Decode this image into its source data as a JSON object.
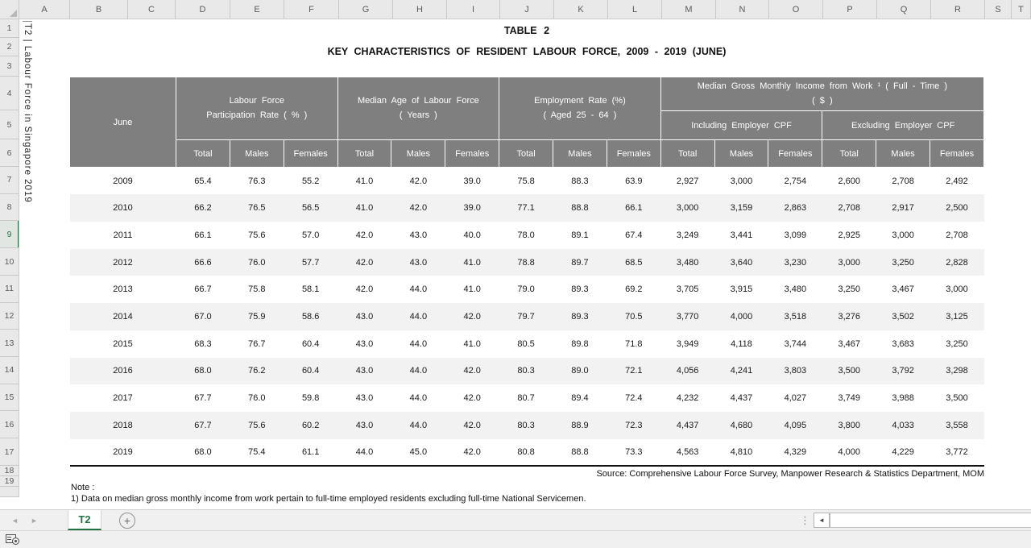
{
  "chrome": {
    "column_letters": [
      "A",
      "B",
      "C",
      "D",
      "E",
      "F",
      "G",
      "H",
      "I",
      "J",
      "K",
      "L",
      "M",
      "N",
      "O",
      "P",
      "Q",
      "R",
      "S",
      "T"
    ],
    "row_numbers": [
      "1",
      "2",
      "3",
      "4",
      "5",
      "6",
      "7",
      "8",
      "9",
      "10",
      "11",
      "12",
      "13",
      "14",
      "15",
      "16",
      "17",
      "18",
      "19"
    ],
    "selected_row": "9",
    "vertical_text": "T2 | Labour Force in Singapore 2019",
    "sheet_tab": "T2",
    "icons": {
      "nav_left": "◄",
      "nav_right": "►",
      "add_sheet": "+",
      "tab_scroll_dots": "⋮",
      "hscroll_left": "◄"
    },
    "colors": {
      "accent_green": "#217346",
      "table_header_gray": "#7f7f7f",
      "alt_row_gray": "#f2f2f2"
    }
  },
  "table": {
    "title": "TABLE 2",
    "subtitle": "KEY CHARACTERISTICS OF RESIDENT LABOUR FORCE, 2009 - 2019 (JUNE)",
    "row_header": "June",
    "groups": [
      {
        "label": "Labour Force\nParticipation Rate ( % )"
      },
      {
        "label": "Median Age of Labour Force\n( Years )"
      },
      {
        "label": "Employment Rate (%)\n( Aged 25 - 64 )"
      },
      {
        "label": "Median Gross Monthly Income from Work ¹ ( Full - Time )\n( $ )",
        "sub": [
          "Including Employer CPF",
          "Excluding Employer CPF"
        ]
      }
    ],
    "sub_headers": [
      "Total",
      "Males",
      "Females",
      "Total",
      "Males",
      "Females",
      "Total",
      "Males",
      "Females",
      "Total",
      "Males",
      "Females",
      "Total",
      "Males",
      "Females"
    ],
    "rows": [
      {
        "year": "2009",
        "values": [
          "65.4",
          "76.3",
          "55.2",
          "41.0",
          "42.0",
          "39.0",
          "75.8",
          "88.3",
          "63.9",
          "2,927",
          "3,000",
          "2,754",
          "2,600",
          "2,708",
          "2,492"
        ]
      },
      {
        "year": "2010",
        "values": [
          "66.2",
          "76.5",
          "56.5",
          "41.0",
          "42.0",
          "39.0",
          "77.1",
          "88.8",
          "66.1",
          "3,000",
          "3,159",
          "2,863",
          "2,708",
          "2,917",
          "2,500"
        ]
      },
      {
        "year": "2011",
        "values": [
          "66.1",
          "75.6",
          "57.0",
          "42.0",
          "43.0",
          "40.0",
          "78.0",
          "89.1",
          "67.4",
          "3,249",
          "3,441",
          "3,099",
          "2,925",
          "3,000",
          "2,708"
        ]
      },
      {
        "year": "2012",
        "values": [
          "66.6",
          "76.0",
          "57.7",
          "42.0",
          "43.0",
          "41.0",
          "78.8",
          "89.7",
          "68.5",
          "3,480",
          "3,640",
          "3,230",
          "3,000",
          "3,250",
          "2,828"
        ]
      },
      {
        "year": "2013",
        "values": [
          "66.7",
          "75.8",
          "58.1",
          "42.0",
          "44.0",
          "41.0",
          "79.0",
          "89.3",
          "69.2",
          "3,705",
          "3,915",
          "3,480",
          "3,250",
          "3,467",
          "3,000"
        ]
      },
      {
        "year": "2014",
        "values": [
          "67.0",
          "75.9",
          "58.6",
          "43.0",
          "44.0",
          "42.0",
          "79.7",
          "89.3",
          "70.5",
          "3,770",
          "4,000",
          "3,518",
          "3,276",
          "3,502",
          "3,125"
        ]
      },
      {
        "year": "2015",
        "values": [
          "68.3",
          "76.7",
          "60.4",
          "43.0",
          "44.0",
          "41.0",
          "80.5",
          "89.8",
          "71.8",
          "3,949",
          "4,118",
          "3,744",
          "3,467",
          "3,683",
          "3,250"
        ]
      },
      {
        "year": "2016",
        "values": [
          "68.0",
          "76.2",
          "60.4",
          "43.0",
          "44.0",
          "42.0",
          "80.3",
          "89.0",
          "72.1",
          "4,056",
          "4,241",
          "3,803",
          "3,500",
          "3,792",
          "3,298"
        ]
      },
      {
        "year": "2017",
        "values": [
          "67.7",
          "76.0",
          "59.8",
          "43.0",
          "44.0",
          "42.0",
          "80.7",
          "89.4",
          "72.4",
          "4,232",
          "4,437",
          "4,027",
          "3,749",
          "3,988",
          "3,500"
        ]
      },
      {
        "year": "2018",
        "values": [
          "67.7",
          "75.6",
          "60.2",
          "43.0",
          "44.0",
          "42.0",
          "80.3",
          "88.9",
          "72.3",
          "4,437",
          "4,680",
          "4,095",
          "3,800",
          "4,033",
          "3,558"
        ]
      },
      {
        "year": "2019",
        "values": [
          "68.0",
          "75.4",
          "61.1",
          "44.0",
          "45.0",
          "42.0",
          "80.8",
          "88.8",
          "73.3",
          "4,563",
          "4,810",
          "4,329",
          "4,000",
          "4,229",
          "3,772"
        ]
      }
    ],
    "source": "Source:  Comprehensive Labour Force Survey, Manpower Research & Statistics Department, MOM",
    "note_label": "Note :",
    "note_1": "1) Data on median gross monthly income from work pertain to full-time employed residents excluding full-time National Servicemen."
  }
}
